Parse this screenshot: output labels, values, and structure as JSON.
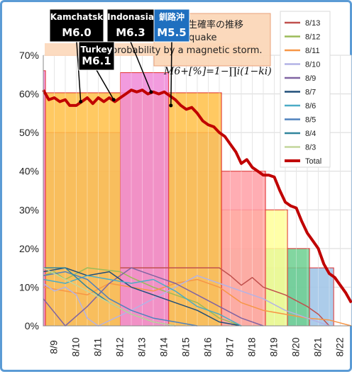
{
  "chart_data": {
    "type": "line",
    "title_lines": [
      "生確率の推移",
      "quake",
      "probability by a magnetic storm."
    ],
    "formula": "M6+[%]=1−∏i(1−ki)",
    "y_ticks": [
      "0%",
      "10%",
      "20%",
      "30%",
      "40%",
      "50%",
      "60%",
      "70%"
    ],
    "ylim": [
      0,
      70
    ],
    "x_ticks": [
      "8/9",
      "8/10",
      "8/11",
      "8/12",
      "8/13",
      "8/14",
      "8/15",
      "8/16",
      "8/17",
      "8/18",
      "8/19",
      "8/20",
      "8/21",
      "8/22"
    ],
    "xlim": [
      8.0,
      22.0
    ],
    "bands": [
      {
        "from": 8.0,
        "to": 21.2,
        "top": 15,
        "color": "#9dc3e6"
      },
      {
        "from": 8.0,
        "to": 20.1,
        "top": 20,
        "color": "#6ccf8f"
      },
      {
        "from": 8.0,
        "to": 19.1,
        "top": 30,
        "color": "#ffff99"
      },
      {
        "from": 8.0,
        "to": 18.1,
        "top": 40,
        "color": "#ff9fa6"
      },
      {
        "from": 8.0,
        "to": 16.1,
        "top": 50,
        "color": "#c9b3e6"
      },
      {
        "from": 8.0,
        "to": 16.1,
        "top": 60.3,
        "color": "#ffbf47"
      },
      {
        "from": 11.5,
        "to": 13.7,
        "top": 65.5,
        "color": "#f089d8"
      },
      {
        "from": 8.0,
        "to": 8.1,
        "top": 66,
        "color": "#f089d8"
      }
    ],
    "series": [
      {
        "name": "Total",
        "color": "#c00000",
        "width": 4,
        "points": [
          [
            8.0,
            61
          ],
          [
            8.25,
            58.5
          ],
          [
            8.5,
            59
          ],
          [
            8.75,
            58
          ],
          [
            9.0,
            58.5
          ],
          [
            9.2,
            57
          ],
          [
            9.5,
            57
          ],
          [
            9.75,
            58
          ],
          [
            10.0,
            59
          ],
          [
            10.25,
            57.5
          ],
          [
            10.5,
            59
          ],
          [
            10.75,
            58
          ],
          [
            11.0,
            59
          ],
          [
            11.25,
            58
          ],
          [
            11.5,
            59
          ],
          [
            11.75,
            60
          ],
          [
            12.0,
            61
          ],
          [
            12.25,
            60.5
          ],
          [
            12.5,
            61
          ],
          [
            12.75,
            60
          ],
          [
            13.0,
            60.5
          ],
          [
            13.25,
            60
          ],
          [
            13.5,
            60.5
          ],
          [
            13.75,
            59.5
          ],
          [
            14.0,
            58.5
          ],
          [
            14.25,
            57
          ],
          [
            14.5,
            56
          ],
          [
            14.75,
            56.5
          ],
          [
            15.0,
            55
          ],
          [
            15.25,
            53
          ],
          [
            15.5,
            52
          ],
          [
            15.75,
            51.5
          ],
          [
            16.0,
            50
          ],
          [
            16.25,
            49
          ],
          [
            16.5,
            47
          ],
          [
            16.75,
            45
          ],
          [
            17.0,
            42
          ],
          [
            17.25,
            43
          ],
          [
            17.5,
            41
          ],
          [
            17.75,
            40
          ],
          [
            18.0,
            39
          ],
          [
            18.25,
            39
          ],
          [
            18.5,
            38.5
          ],
          [
            18.75,
            35
          ],
          [
            19.0,
            32
          ],
          [
            19.25,
            31
          ],
          [
            19.5,
            30.5
          ],
          [
            19.75,
            27
          ],
          [
            20.0,
            24
          ],
          [
            20.25,
            22
          ],
          [
            20.5,
            20
          ],
          [
            20.75,
            16
          ],
          [
            21.0,
            13.5
          ],
          [
            21.25,
            12.5
          ],
          [
            21.5,
            10.5
          ],
          [
            21.75,
            8.5
          ],
          [
            22.0,
            6
          ]
        ]
      },
      {
        "name": "8/13",
        "color": "#c0504d",
        "width": 1.5,
        "points": [
          [
            11.5,
            15
          ],
          [
            16,
            15
          ],
          [
            16.5,
            13
          ],
          [
            17,
            10.5
          ],
          [
            17.5,
            12.5
          ],
          [
            18,
            10
          ],
          [
            19,
            8
          ],
          [
            20,
            5
          ],
          [
            20.5,
            3
          ],
          [
            21,
            0
          ]
        ]
      },
      {
        "name": "8/12",
        "color": "#9bbb59",
        "width": 1.5,
        "points": [
          [
            8,
            13
          ],
          [
            8.5,
            14
          ],
          [
            9,
            12
          ],
          [
            10,
            15
          ],
          [
            11.5,
            14
          ],
          [
            12,
            12.5
          ],
          [
            13,
            10
          ],
          [
            14,
            8
          ],
          [
            15,
            6
          ],
          [
            15.5,
            4
          ],
          [
            16,
            2
          ],
          [
            17,
            0
          ]
        ]
      },
      {
        "name": "8/11",
        "color": "#f79646",
        "width": 1.5,
        "points": [
          [
            8,
            10
          ],
          [
            9,
            9
          ],
          [
            10,
            8
          ],
          [
            11,
            11
          ],
          [
            12,
            10
          ],
          [
            13,
            9
          ],
          [
            14,
            11
          ],
          [
            15,
            12
          ],
          [
            16,
            10
          ],
          [
            17,
            6
          ],
          [
            18,
            4
          ],
          [
            19,
            3
          ],
          [
            20,
            2
          ],
          [
            21,
            1.5
          ],
          [
            22,
            0
          ]
        ]
      },
      {
        "name": "8/10",
        "color": "#b3b3e6",
        "width": 1.5,
        "points": [
          [
            8,
            11
          ],
          [
            8.5,
            9
          ],
          [
            9,
            10
          ],
          [
            9.5,
            8
          ],
          [
            10,
            2
          ],
          [
            10.5,
            0
          ],
          [
            12,
            4
          ],
          [
            13,
            7
          ],
          [
            14,
            10
          ],
          [
            15,
            13
          ],
          [
            16,
            11
          ],
          [
            17,
            9
          ],
          [
            18,
            7
          ],
          [
            19,
            4
          ],
          [
            20,
            2
          ],
          [
            21,
            0
          ]
        ]
      },
      {
        "name": "8/9",
        "color": "#8064a2",
        "width": 1.5,
        "points": [
          [
            8,
            7
          ],
          [
            9,
            0
          ],
          [
            10,
            5
          ],
          [
            11,
            11
          ],
          [
            12,
            15
          ],
          [
            13,
            13
          ],
          [
            14,
            11
          ],
          [
            15,
            8
          ],
          [
            16,
            5
          ],
          [
            17,
            2
          ],
          [
            18,
            0
          ]
        ]
      },
      {
        "name": "8/7",
        "color": "#1f4e79",
        "width": 1.5,
        "points": [
          [
            8,
            14
          ],
          [
            9,
            15
          ],
          [
            10,
            13
          ],
          [
            11,
            14
          ],
          [
            12,
            10
          ],
          [
            13,
            8
          ],
          [
            14,
            6
          ],
          [
            15,
            4
          ],
          [
            16,
            1
          ],
          [
            17,
            0
          ]
        ]
      },
      {
        "name": "8/6",
        "color": "#4bacc6",
        "width": 1.5,
        "points": [
          [
            8,
            12
          ],
          [
            9,
            11
          ],
          [
            10,
            13
          ],
          [
            11,
            12
          ],
          [
            12,
            11
          ],
          [
            13,
            12
          ],
          [
            14,
            9
          ],
          [
            15,
            5
          ],
          [
            16,
            3
          ],
          [
            17,
            0
          ]
        ]
      },
      {
        "name": "8/5",
        "color": "#4f81bd",
        "width": 1.5,
        "points": [
          [
            8,
            13
          ],
          [
            9,
            14
          ],
          [
            10,
            12
          ],
          [
            11,
            7
          ],
          [
            12,
            4
          ],
          [
            13,
            2
          ],
          [
            14,
            1
          ],
          [
            15,
            0
          ]
        ]
      },
      {
        "name": "8/4",
        "color": "#31859c",
        "width": 1.5,
        "points": [
          [
            8,
            15
          ],
          [
            9,
            15
          ],
          [
            10,
            10
          ],
          [
            11,
            6
          ],
          [
            12,
            3
          ],
          [
            13,
            1
          ],
          [
            14,
            0
          ]
        ]
      },
      {
        "name": "8/3",
        "color": "#c3d69b",
        "width": 1.5,
        "points": [
          [
            8,
            15
          ],
          [
            9,
            12
          ],
          [
            10,
            9
          ],
          [
            11,
            6
          ],
          [
            12,
            3
          ],
          [
            13,
            1
          ],
          [
            14,
            0
          ]
        ]
      }
    ],
    "legend": [
      {
        "label": "8/13",
        "color": "#c0504d"
      },
      {
        "label": "8/12",
        "color": "#9bbb59"
      },
      {
        "label": "8/11",
        "color": "#f79646"
      },
      {
        "label": "8/10",
        "color": "#b3b3e6"
      },
      {
        "label": "8/9",
        "color": "#8064a2"
      },
      {
        "label": "8/7",
        "color": "#1f4e79"
      },
      {
        "label": "8/6",
        "color": "#4bacc6"
      },
      {
        "label": "8/5",
        "color": "#4f81bd"
      },
      {
        "label": "8/4",
        "color": "#31859c"
      },
      {
        "label": "8/3",
        "color": "#c3d69b"
      },
      {
        "label": "Total",
        "color": "#c00000"
      }
    ],
    "callouts": [
      {
        "name": "Kamchatsk",
        "mag": "M6.0",
        "at_x": 9.7,
        "at_y": 58,
        "bg": "#000000"
      },
      {
        "name": "Indonasia",
        "mag": "M6.3",
        "at_x": 12.9,
        "at_y": 60.5,
        "bg": "#000000"
      },
      {
        "name": "釧路沖",
        "mag": "M5.5",
        "at_x": 13.8,
        "at_y": 57,
        "bg": "#1f6fbf"
      },
      {
        "name": "Turkey",
        "mag": "M6.1",
        "at_x": 11.2,
        "at_y": 58.5,
        "bg": "#000000"
      }
    ]
  }
}
